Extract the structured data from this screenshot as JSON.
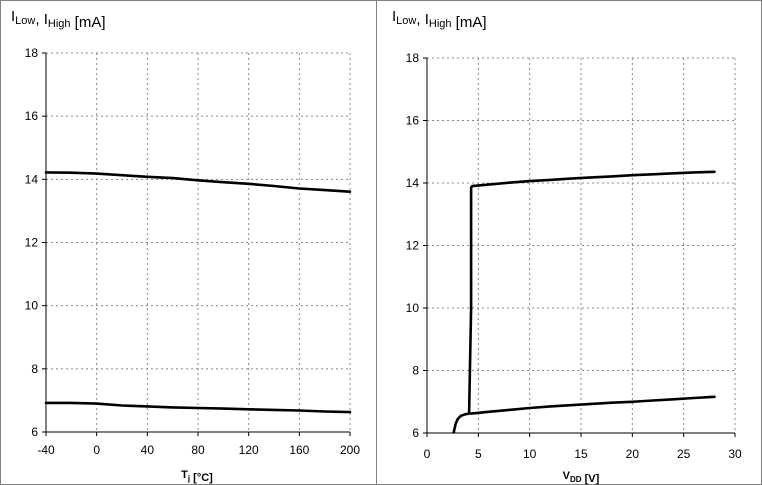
{
  "chart_data": [
    {
      "type": "line",
      "ylabel": {
        "parts": [
          {
            "t": "I",
            "sub": "Low"
          },
          {
            "t": ", I",
            "sub": "High"
          },
          {
            "t": " [mA]",
            "sub": ""
          }
        ]
      },
      "xlabel": {
        "parts": [
          {
            "t": "T",
            "sub": "j"
          },
          {
            "t": " [°C]",
            "sub": ""
          }
        ]
      },
      "xlim": [
        -40,
        200
      ],
      "ylim": [
        6,
        18
      ],
      "xticks": [
        -40,
        0,
        40,
        80,
        120,
        160,
        200
      ],
      "yticks": [
        6,
        8,
        10,
        12,
        14,
        16,
        18
      ],
      "grid": true,
      "series": [
        {
          "x": [
            -40,
            -20,
            0,
            20,
            40,
            60,
            80,
            100,
            120,
            140,
            160,
            180,
            200
          ],
          "y": [
            14.22,
            14.21,
            14.18,
            14.13,
            14.08,
            14.04,
            13.97,
            13.91,
            13.86,
            13.79,
            13.71,
            13.66,
            13.61
          ]
        },
        {
          "x": [
            -40,
            -20,
            0,
            20,
            40,
            60,
            80,
            100,
            120,
            140,
            160,
            180,
            200
          ],
          "y": [
            6.92,
            6.92,
            6.9,
            6.84,
            6.81,
            6.78,
            6.76,
            6.74,
            6.72,
            6.7,
            6.68,
            6.65,
            6.63
          ]
        }
      ]
    },
    {
      "type": "line",
      "ylabel": {
        "parts": [
          {
            "t": "I",
            "sub": "Low"
          },
          {
            "t": ", I",
            "sub": "High"
          },
          {
            "t": " [mA]",
            "sub": ""
          }
        ]
      },
      "xlabel": {
        "parts": [
          {
            "t": "V",
            "sub": "DD"
          },
          {
            "t": " [V]",
            "sub": ""
          }
        ]
      },
      "xlim": [
        0,
        30
      ],
      "ylim": [
        6,
        18
      ],
      "xticks": [
        0,
        5,
        10,
        15,
        20,
        25,
        30
      ],
      "yticks": [
        6,
        8,
        10,
        12,
        14,
        16,
        18
      ],
      "grid": true,
      "series": [
        {
          "x": [
            2.6,
            2.8,
            3.0,
            3.3,
            3.7,
            4.1,
            4.3,
            4.3,
            4.4,
            6,
            8,
            10,
            12,
            14,
            16,
            18,
            20,
            22,
            24,
            26,
            28
          ],
          "y": [
            6.02,
            6.3,
            6.45,
            6.55,
            6.6,
            6.62,
            10.0,
            13.85,
            13.9,
            13.95,
            14.01,
            14.06,
            14.1,
            14.14,
            14.18,
            14.21,
            14.25,
            14.28,
            14.31,
            14.34,
            14.36
          ]
        },
        {
          "x": [
            4.3,
            6,
            8,
            10,
            12,
            14,
            16,
            18,
            20,
            22,
            24,
            26,
            28
          ],
          "y": [
            6.62,
            6.68,
            6.74,
            6.8,
            6.85,
            6.89,
            6.93,
            6.97,
            7.0,
            7.04,
            7.08,
            7.12,
            7.16
          ]
        }
      ]
    }
  ]
}
